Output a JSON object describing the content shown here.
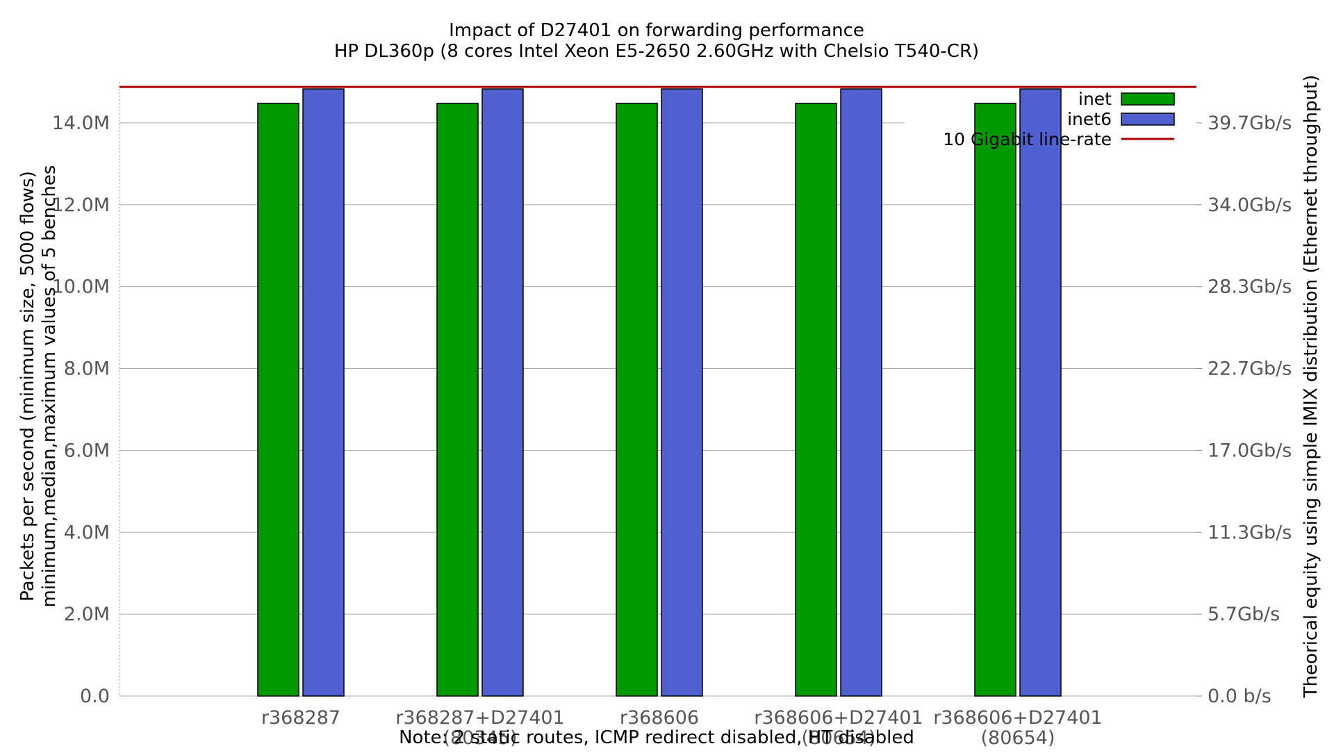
{
  "chart_data": {
    "type": "bar",
    "title": "Impact of D27401 on forwarding performance",
    "subtitle": "HP DL360p (8 cores Intel Xeon E5-2650 2.60GHz with Chelsio T540-CR)",
    "ylabel": "Packets per second (minimum size, 5000 flows)",
    "ylabel2": "minimum,median,maximum values of 5 benches",
    "y2label": "Theorical equity using simple IMIX distribution (Ethernet throughput)",
    "note": "Note: 2 static routes, ICMP redirect disabled, HT disabled",
    "ylim": [
      0,
      15000000
    ],
    "yticks": [
      {
        "value": 0,
        "label": "0.0"
      },
      {
        "value": 2000000,
        "label": "2.0M"
      },
      {
        "value": 4000000,
        "label": "4.0M"
      },
      {
        "value": 6000000,
        "label": "6.0M"
      },
      {
        "value": 8000000,
        "label": "8.0M"
      },
      {
        "value": 10000000,
        "label": "10.0M"
      },
      {
        "value": 12000000,
        "label": "12.0M"
      },
      {
        "value": 14000000,
        "label": "14.0M"
      }
    ],
    "y2ticks": [
      "0.0 b/s",
      "5.7Gb/s",
      "11.3Gb/s",
      "17.0Gb/s",
      "22.7Gb/s",
      "28.3Gb/s",
      "34.0Gb/s",
      "39.7Gb/s"
    ],
    "categories": [
      [
        "r368287"
      ],
      [
        "r368287+D27401",
        "(80345)"
      ],
      [
        "r368606"
      ],
      [
        "r368606+D27401",
        "(80654)"
      ],
      [
        "r368606+D27401",
        "(80654)"
      ]
    ],
    "series": [
      {
        "name": "inet",
        "color": "#009900",
        "values": [
          14480000,
          14480000,
          14480000,
          14480000,
          14480000
        ]
      },
      {
        "name": "inet6",
        "color": "#5060d0",
        "values": [
          14830000,
          14830000,
          14830000,
          14830000,
          14830000
        ]
      }
    ],
    "reference_line": {
      "name": "10 Gigabit line-rate",
      "value": 14880000,
      "color": "#aa0000"
    },
    "grid": true,
    "legend_position": "top-right"
  }
}
